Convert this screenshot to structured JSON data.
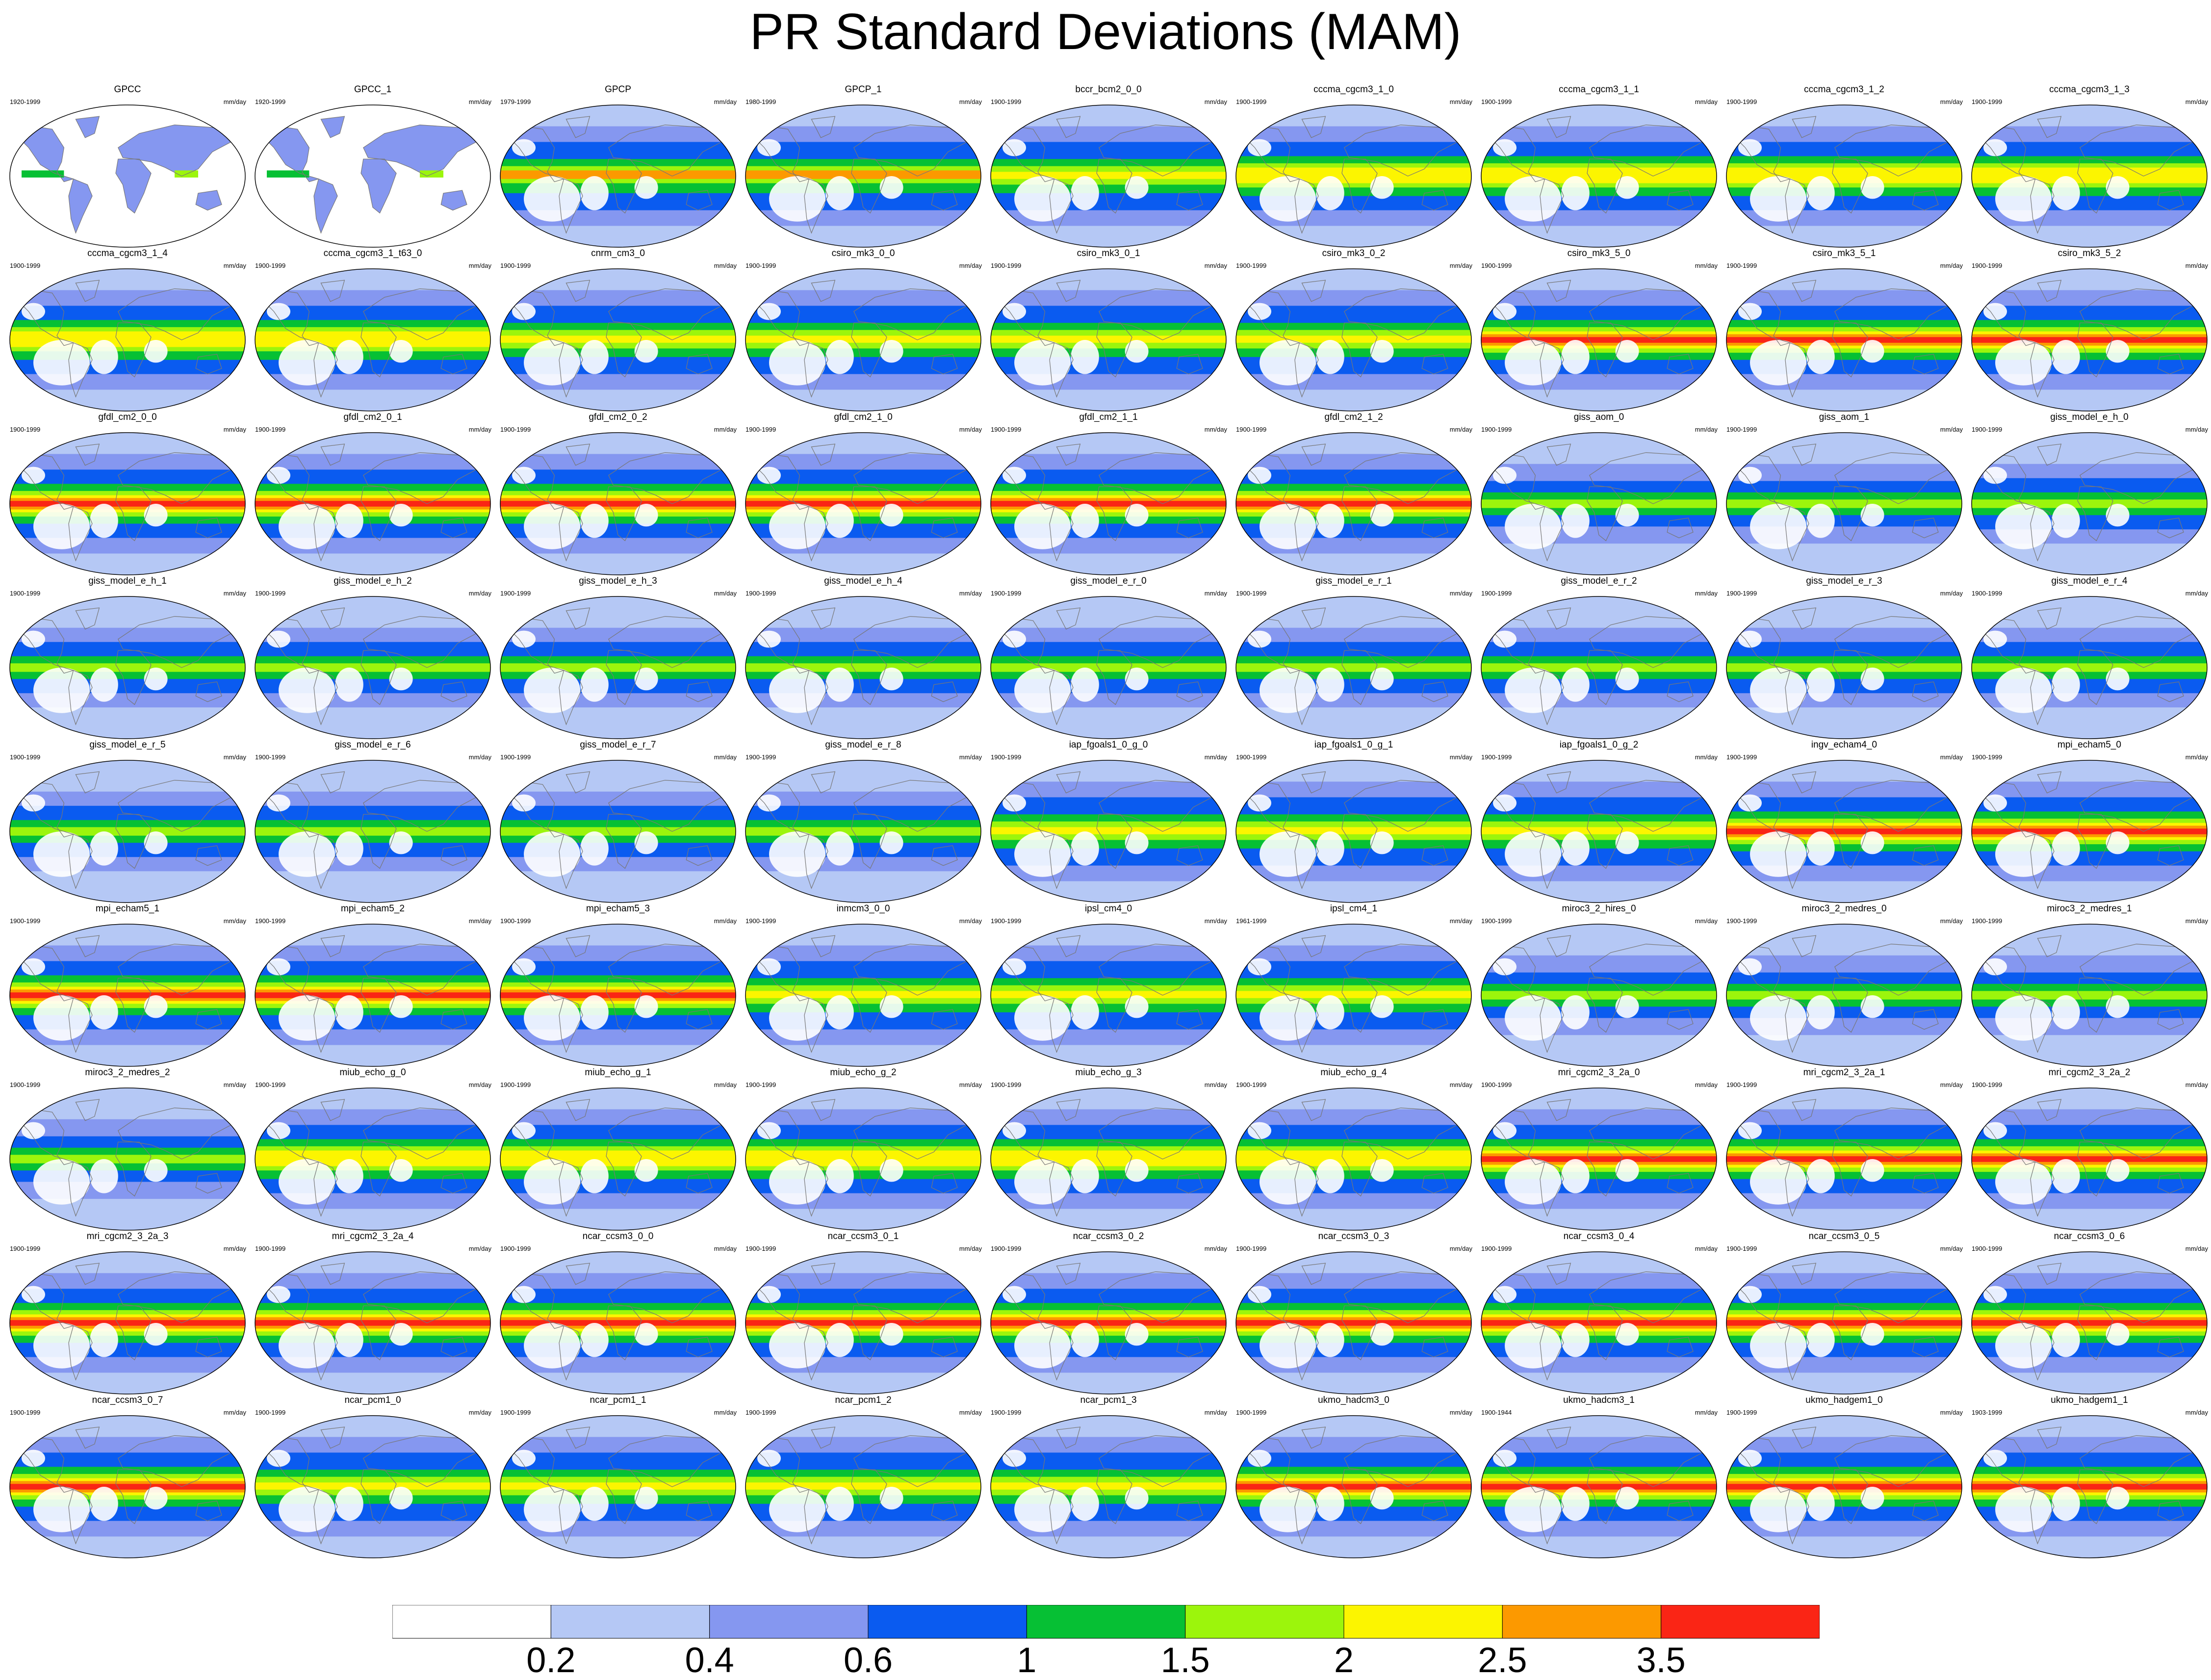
{
  "chart_data": {
    "type": "heatmap",
    "title": "PR Standard Deviations (MAM)",
    "layout": {
      "rows": 9,
      "columns": 9
    },
    "panels": [
      {
        "name": "GPCC",
        "period": "1920-1999",
        "units": "mm/day",
        "pattern": "landonly"
      },
      {
        "name": "GPCC_1",
        "period": "1920-1999",
        "units": "mm/day",
        "pattern": "landonly"
      },
      {
        "name": "GPCP",
        "period": "1979-1999",
        "units": "mm/day",
        "pattern": "obs"
      },
      {
        "name": "GPCP_1",
        "period": "1980-1999",
        "units": "mm/day",
        "pattern": "obs"
      },
      {
        "name": "bccr_bcm2_0_0",
        "period": "1900-1999",
        "units": "mm/day",
        "pattern": "moderate"
      },
      {
        "name": "cccma_cgcm3_1_0",
        "period": "1900-1999",
        "units": "mm/day",
        "pattern": "pacific"
      },
      {
        "name": "cccma_cgcm3_1_1",
        "period": "1900-1999",
        "units": "mm/day",
        "pattern": "pacific"
      },
      {
        "name": "cccma_cgcm3_1_2",
        "period": "1900-1999",
        "units": "mm/day",
        "pattern": "pacific"
      },
      {
        "name": "cccma_cgcm3_1_3",
        "period": "1900-1999",
        "units": "mm/day",
        "pattern": "pacific"
      },
      {
        "name": "cccma_cgcm3_1_4",
        "period": "1900-1999",
        "units": "mm/day",
        "pattern": "pacific"
      },
      {
        "name": "cccma_cgcm3_1_t63_0",
        "period": "1900-1999",
        "units": "mm/day",
        "pattern": "pacific"
      },
      {
        "name": "cnrm_cm3_0",
        "period": "1900-1999",
        "units": "mm/day",
        "pattern": "moderate"
      },
      {
        "name": "csiro_mk3_0_0",
        "period": "1900-1999",
        "units": "mm/day",
        "pattern": "moderate"
      },
      {
        "name": "csiro_mk3_0_1",
        "period": "1900-1999",
        "units": "mm/day",
        "pattern": "moderate"
      },
      {
        "name": "csiro_mk3_0_2",
        "period": "1900-1999",
        "units": "mm/day",
        "pattern": "moderate"
      },
      {
        "name": "csiro_mk3_5_0",
        "period": "1900-1999",
        "units": "mm/day",
        "pattern": "strong"
      },
      {
        "name": "csiro_mk3_5_1",
        "period": "1900-1999",
        "units": "mm/day",
        "pattern": "strong"
      },
      {
        "name": "csiro_mk3_5_2",
        "period": "1900-1999",
        "units": "mm/day",
        "pattern": "strong"
      },
      {
        "name": "gfdl_cm2_0_0",
        "period": "1900-1999",
        "units": "mm/day",
        "pattern": "strong"
      },
      {
        "name": "gfdl_cm2_0_1",
        "period": "1900-1999",
        "units": "mm/day",
        "pattern": "strong"
      },
      {
        "name": "gfdl_cm2_0_2",
        "period": "1900-1999",
        "units": "mm/day",
        "pattern": "strong"
      },
      {
        "name": "gfdl_cm2_1_0",
        "period": "1900-1999",
        "units": "mm/day",
        "pattern": "strong"
      },
      {
        "name": "gfdl_cm2_1_1",
        "period": "1900-1999",
        "units": "mm/day",
        "pattern": "strong"
      },
      {
        "name": "gfdl_cm2_1_2",
        "period": "1900-1999",
        "units": "mm/day",
        "pattern": "strong"
      },
      {
        "name": "giss_aom_0",
        "period": "1900-1999",
        "units": "mm/day",
        "pattern": "weak"
      },
      {
        "name": "giss_aom_1",
        "period": "1900-1999",
        "units": "mm/day",
        "pattern": "weak"
      },
      {
        "name": "giss_model_e_h_0",
        "period": "1900-1999",
        "units": "mm/day",
        "pattern": "giss"
      },
      {
        "name": "giss_model_e_h_1",
        "period": "1900-1999",
        "units": "mm/day",
        "pattern": "giss"
      },
      {
        "name": "giss_model_e_h_2",
        "period": "1900-1999",
        "units": "mm/day",
        "pattern": "giss"
      },
      {
        "name": "giss_model_e_h_3",
        "period": "1900-1999",
        "units": "mm/day",
        "pattern": "giss"
      },
      {
        "name": "giss_model_e_h_4",
        "period": "1900-1999",
        "units": "mm/day",
        "pattern": "giss"
      },
      {
        "name": "giss_model_e_r_0",
        "period": "1900-1999",
        "units": "mm/day",
        "pattern": "giss"
      },
      {
        "name": "giss_model_e_r_1",
        "period": "1900-1999",
        "units": "mm/day",
        "pattern": "giss"
      },
      {
        "name": "giss_model_e_r_2",
        "period": "1900-1999",
        "units": "mm/day",
        "pattern": "giss"
      },
      {
        "name": "giss_model_e_r_3",
        "period": "1900-1999",
        "units": "mm/day",
        "pattern": "giss"
      },
      {
        "name": "giss_model_e_r_4",
        "period": "1900-1999",
        "units": "mm/day",
        "pattern": "giss"
      },
      {
        "name": "giss_model_e_r_5",
        "period": "1900-1999",
        "units": "mm/day",
        "pattern": "giss"
      },
      {
        "name": "giss_model_e_r_6",
        "period": "1900-1999",
        "units": "mm/day",
        "pattern": "giss"
      },
      {
        "name": "giss_model_e_r_7",
        "period": "1900-1999",
        "units": "mm/day",
        "pattern": "giss"
      },
      {
        "name": "giss_model_e_r_8",
        "period": "1900-1999",
        "units": "mm/day",
        "pattern": "giss"
      },
      {
        "name": "iap_fgoals1_0_g_0",
        "period": "1900-1999",
        "units": "mm/day",
        "pattern": "moderate"
      },
      {
        "name": "iap_fgoals1_0_g_1",
        "period": "1900-1999",
        "units": "mm/day",
        "pattern": "moderate"
      },
      {
        "name": "iap_fgoals1_0_g_2",
        "period": "1900-1999",
        "units": "mm/day",
        "pattern": "moderate"
      },
      {
        "name": "ingv_echam4_0",
        "period": "1900-1999",
        "units": "mm/day",
        "pattern": "strong"
      },
      {
        "name": "mpi_echam5_0",
        "period": "1900-1999",
        "units": "mm/day",
        "pattern": "strong"
      },
      {
        "name": "mpi_echam5_1",
        "period": "1900-1999",
        "units": "mm/day",
        "pattern": "strong"
      },
      {
        "name": "mpi_echam5_2",
        "period": "1900-1999",
        "units": "mm/day",
        "pattern": "strong"
      },
      {
        "name": "mpi_echam5_3",
        "period": "1900-1999",
        "units": "mm/day",
        "pattern": "strong"
      },
      {
        "name": "inmcm3_0_0",
        "period": "1900-1999",
        "units": "mm/day",
        "pattern": "moderate"
      },
      {
        "name": "ipsl_cm4_0",
        "period": "1900-1999",
        "units": "mm/day",
        "pattern": "moderate"
      },
      {
        "name": "ipsl_cm4_1",
        "period": "1961-1999",
        "units": "mm/day",
        "pattern": "moderate"
      },
      {
        "name": "miroc3_2_hires_0",
        "period": "1900-1999",
        "units": "mm/day",
        "pattern": "weak"
      },
      {
        "name": "miroc3_2_medres_0",
        "period": "1900-1999",
        "units": "mm/day",
        "pattern": "weak"
      },
      {
        "name": "miroc3_2_medres_1",
        "period": "1900-1999",
        "units": "mm/day",
        "pattern": "weak"
      },
      {
        "name": "miroc3_2_medres_2",
        "period": "1900-1999",
        "units": "mm/day",
        "pattern": "weak"
      },
      {
        "name": "miub_echo_g_0",
        "period": "1900-1999",
        "units": "mm/day",
        "pattern": "pacific"
      },
      {
        "name": "miub_echo_g_1",
        "period": "1900-1999",
        "units": "mm/day",
        "pattern": "pacific"
      },
      {
        "name": "miub_echo_g_2",
        "period": "1900-1999",
        "units": "mm/day",
        "pattern": "pacific"
      },
      {
        "name": "miub_echo_g_3",
        "period": "1900-1999",
        "units": "mm/day",
        "pattern": "pacific"
      },
      {
        "name": "miub_echo_g_4",
        "period": "1900-1999",
        "units": "mm/day",
        "pattern": "pacific"
      },
      {
        "name": "mri_cgcm2_3_2a_0",
        "period": "1900-1999",
        "units": "mm/day",
        "pattern": "strong"
      },
      {
        "name": "mri_cgcm2_3_2a_1",
        "period": "1900-1999",
        "units": "mm/day",
        "pattern": "strong"
      },
      {
        "name": "mri_cgcm2_3_2a_2",
        "period": "1900-1999",
        "units": "mm/day",
        "pattern": "strong"
      },
      {
        "name": "mri_cgcm2_3_2a_3",
        "period": "1900-1999",
        "units": "mm/day",
        "pattern": "strong"
      },
      {
        "name": "mri_cgcm2_3_2a_4",
        "period": "1900-1999",
        "units": "mm/day",
        "pattern": "strong"
      },
      {
        "name": "ncar_ccsm3_0_0",
        "period": "1900-1999",
        "units": "mm/day",
        "pattern": "strong"
      },
      {
        "name": "ncar_ccsm3_0_1",
        "period": "1900-1999",
        "units": "mm/day",
        "pattern": "strong"
      },
      {
        "name": "ncar_ccsm3_0_2",
        "period": "1900-1999",
        "units": "mm/day",
        "pattern": "strong"
      },
      {
        "name": "ncar_ccsm3_0_3",
        "period": "1900-1999",
        "units": "mm/day",
        "pattern": "strong"
      },
      {
        "name": "ncar_ccsm3_0_4",
        "period": "1900-1999",
        "units": "mm/day",
        "pattern": "strong"
      },
      {
        "name": "ncar_ccsm3_0_5",
        "period": "1900-1999",
        "units": "mm/day",
        "pattern": "strong"
      },
      {
        "name": "ncar_ccsm3_0_6",
        "period": "1900-1999",
        "units": "mm/day",
        "pattern": "strong"
      },
      {
        "name": "ncar_ccsm3_0_7",
        "period": "1900-1999",
        "units": "mm/day",
        "pattern": "strong"
      },
      {
        "name": "ncar_pcm1_0",
        "period": "1900-1999",
        "units": "mm/day",
        "pattern": "moderate"
      },
      {
        "name": "ncar_pcm1_1",
        "period": "1900-1999",
        "units": "mm/day",
        "pattern": "moderate"
      },
      {
        "name": "ncar_pcm1_2",
        "period": "1900-1999",
        "units": "mm/day",
        "pattern": "moderate"
      },
      {
        "name": "ncar_pcm1_3",
        "period": "1900-1999",
        "units": "mm/day",
        "pattern": "moderate"
      },
      {
        "name": "ukmo_hadcm3_0",
        "period": "1900-1999",
        "units": "mm/day",
        "pattern": "strong"
      },
      {
        "name": "ukmo_hadcm3_1",
        "period": "1900-1944",
        "units": "mm/day",
        "pattern": "strong"
      },
      {
        "name": "ukmo_hadgem1_0",
        "period": "1900-1999",
        "units": "mm/day",
        "pattern": "strong"
      },
      {
        "name": "ukmo_hadgem1_1",
        "period": "1903-1999",
        "units": "mm/day",
        "pattern": "strong"
      }
    ],
    "colorbar": {
      "colors": [
        "#ffffff",
        "#b5c8f5",
        "#8597f0",
        "#0a5bf0",
        "#06c034",
        "#9cf50c",
        "#fcf500",
        "#fc9900",
        "#fa2515"
      ],
      "tick_labels": [
        "0.2",
        "0.4",
        "0.6",
        "1",
        "1.5",
        "2",
        "2.5",
        "3.5"
      ],
      "units": "mm/day",
      "placement": "bottom"
    },
    "map_projection": "robinson",
    "coastline_color": "#777777"
  }
}
